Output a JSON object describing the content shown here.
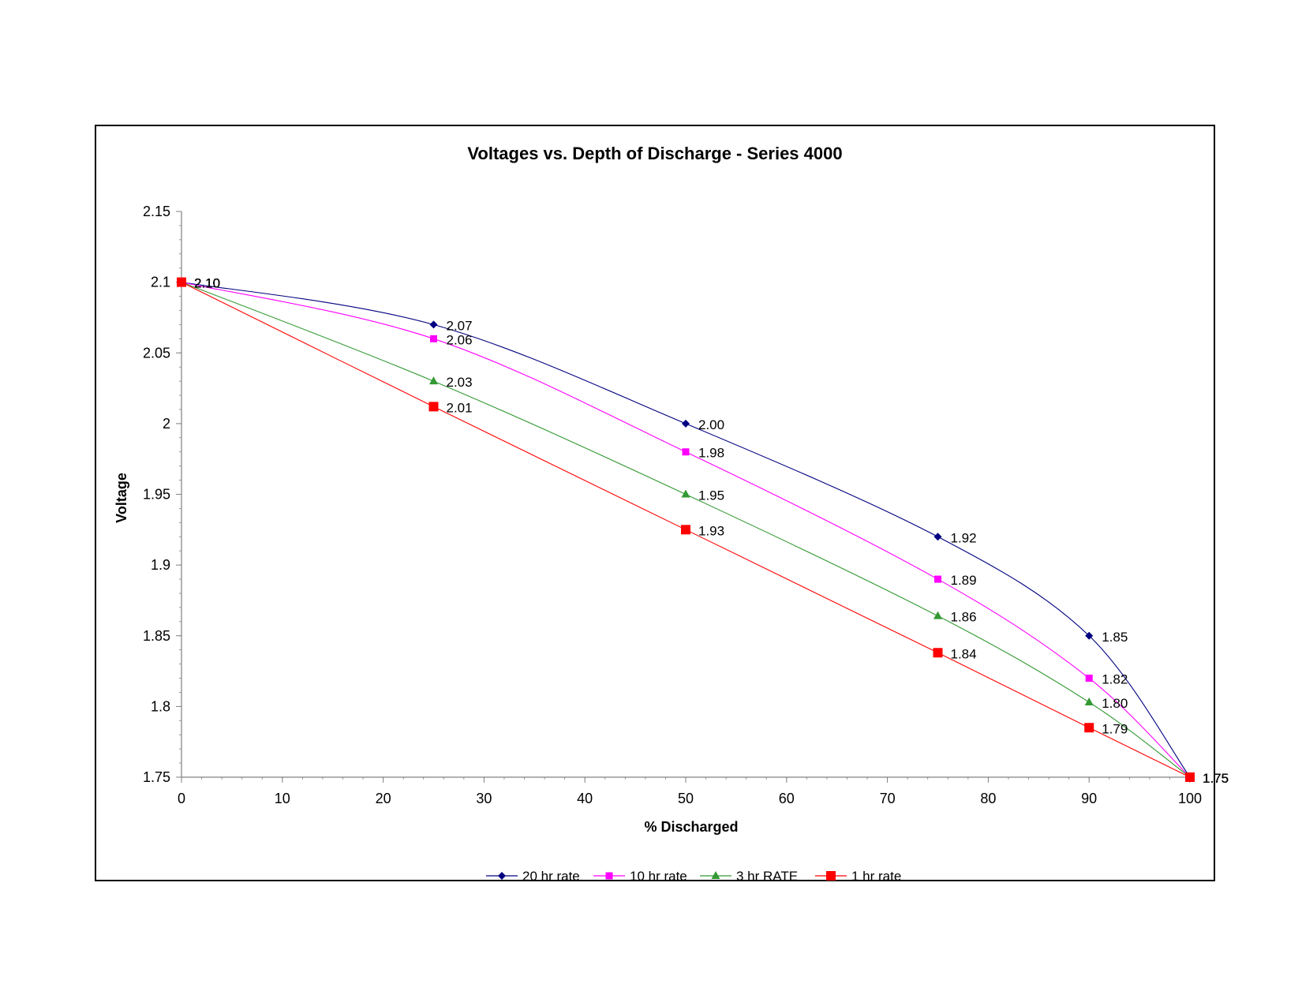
{
  "chart_data": {
    "type": "line",
    "title": "Voltages vs. Depth of Discharge - Series 4000",
    "xlabel": "% Discharged",
    "ylabel": "Voltage",
    "xlim": [
      0,
      100
    ],
    "ylim": [
      1.75,
      2.15
    ],
    "x_ticks": [
      "0",
      "10",
      "20",
      "30",
      "40",
      "50",
      "60",
      "70",
      "80",
      "90",
      "100"
    ],
    "y_ticks": [
      "2.15",
      "2.1",
      "2.05",
      "2",
      "1.95",
      "1.9",
      "1.85",
      "1.8",
      "1.75"
    ],
    "grid": false,
    "legend_position": "bottom",
    "x": [
      0,
      25,
      50,
      75,
      90,
      100
    ],
    "series": [
      {
        "name": "20 hr rate",
        "color": "#000080",
        "marker": "diamond",
        "values": [
          2.1,
          2.07,
          2.0,
          1.92,
          1.85,
          1.75
        ],
        "labels": [
          "2.10",
          "2.07",
          "2.00",
          "1.92",
          "1.85",
          "1.75"
        ]
      },
      {
        "name": "10 hr rate",
        "color": "#ff00ff",
        "marker": "square",
        "values": [
          2.1,
          2.06,
          1.98,
          1.89,
          1.82,
          1.75
        ],
        "labels": [
          "2.10",
          "2.06",
          "1.98",
          "1.89",
          "1.82",
          "1.75"
        ]
      },
      {
        "name": "3 hr RATE",
        "color": "#339933",
        "marker": "triangle",
        "values": [
          2.1,
          2.03,
          1.95,
          1.864,
          1.803,
          1.75
        ],
        "labels": [
          "2.10",
          "2.03",
          "1.95",
          "1.86",
          "1.80",
          "1.75"
        ]
      },
      {
        "name": "1 hr rate",
        "color": "#ff0000",
        "marker": "square-large",
        "values": [
          2.1,
          2.012,
          1.925,
          1.838,
          1.785,
          1.75
        ],
        "labels": [
          "2.10",
          "2.01",
          "1.93",
          "1.84",
          "1.79",
          "1.75"
        ]
      }
    ]
  }
}
